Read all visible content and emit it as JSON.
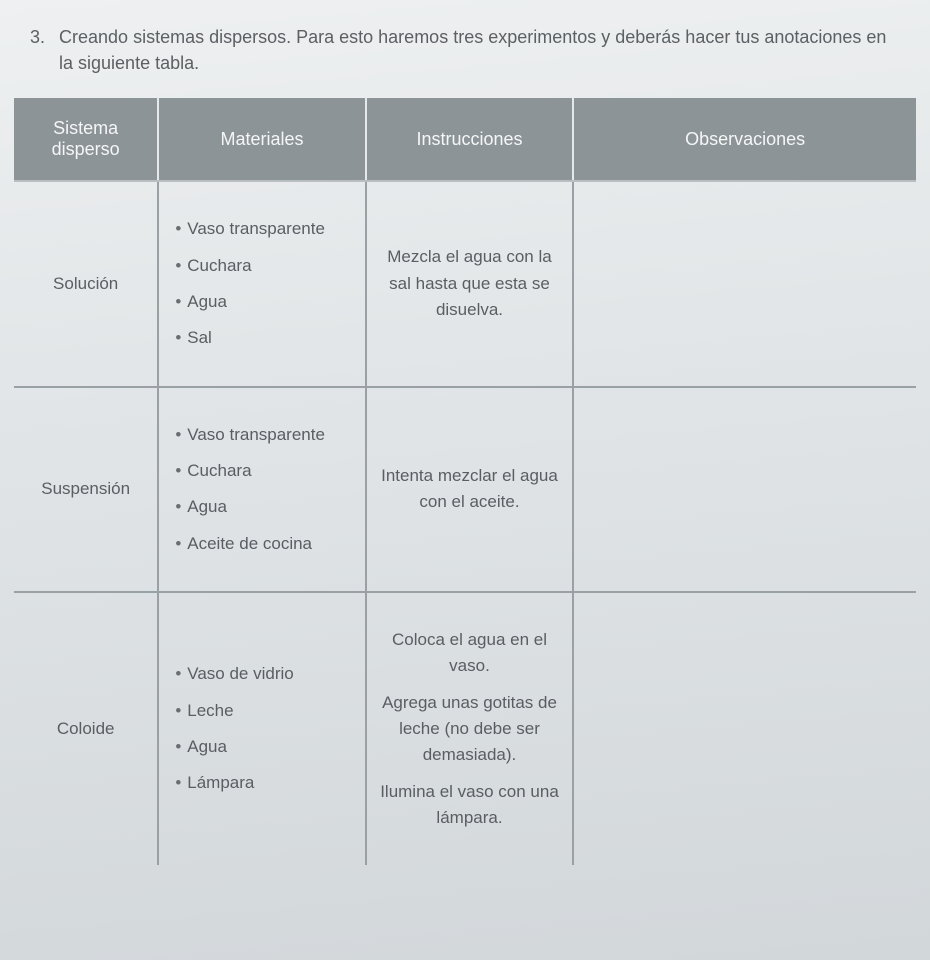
{
  "intro": {
    "number": "3.",
    "text": "Creando sistemas dispersos. Para esto haremos tres experimentos y deberás hacer tus anotaciones en la siguiente tabla."
  },
  "table": {
    "headers": {
      "c1": "Sistema disperso",
      "c2": "Materiales",
      "c3": "Instrucciones",
      "c4": "Observaciones"
    },
    "rows": [
      {
        "sistema": "Solución",
        "materiales": [
          "Vaso transparente",
          "Cuchara",
          "Agua",
          "Sal"
        ],
        "instrucciones": [
          "Mezcla el agua con la sal hasta que esta se disuelva."
        ],
        "observaciones": ""
      },
      {
        "sistema": "Suspensión",
        "materiales": [
          "Vaso transparente",
          "Cuchara",
          "Agua",
          "Aceite de cocina"
        ],
        "instrucciones": [
          "Intenta mezclar el agua con el aceite."
        ],
        "observaciones": ""
      },
      {
        "sistema": "Coloide",
        "materiales": [
          "Vaso de vidrio",
          "Leche",
          "Agua",
          "Lámpara"
        ],
        "instrucciones": [
          "Coloca el agua en el vaso.",
          "Agrega unas gotitas de leche (no debe ser demasiada).",
          "Ilumina el vaso con una lámpara."
        ],
        "observaciones": ""
      }
    ]
  },
  "style": {
    "header_bg": "#8c9498",
    "header_fg": "#f5f6f6",
    "body_fg": "#5a5e62",
    "border_color": "#9aa1a5",
    "page_bg": "#e1e5e7",
    "font_size_body": 17,
    "font_size_header": 18
  }
}
